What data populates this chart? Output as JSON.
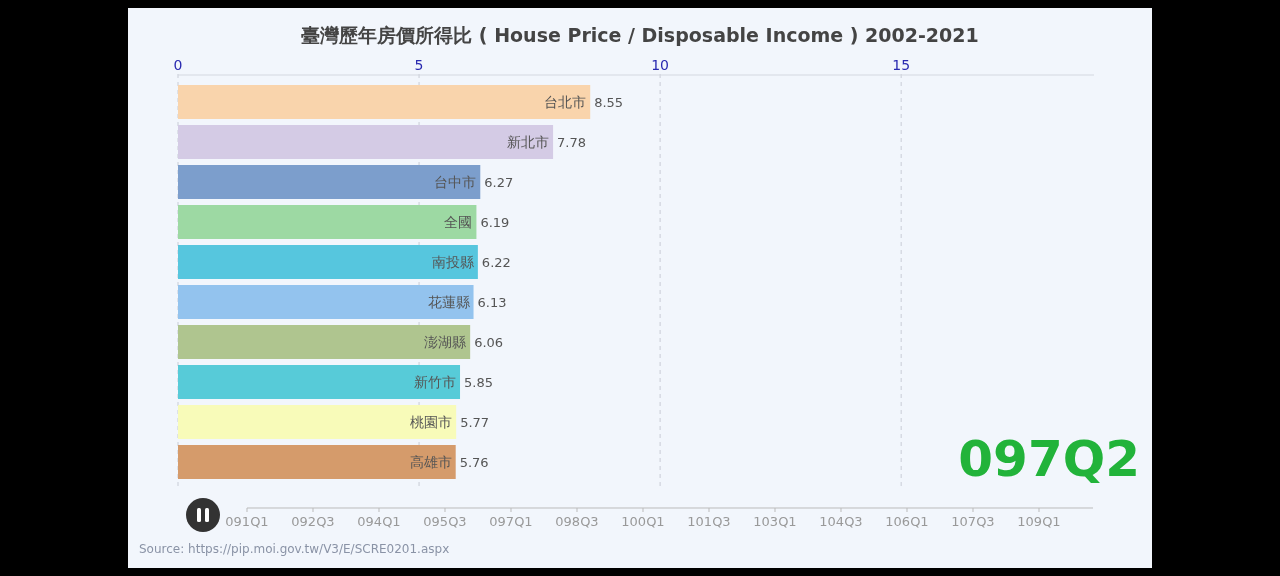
{
  "chart_data": {
    "type": "bar",
    "orientation": "horizontal",
    "title": "臺灣歷年房價所得比 ( House Price / Disposable Income ) 2002-2021",
    "categories": [
      "台北市",
      "新北市",
      "台中市",
      "全國",
      "南投縣",
      "花蓮縣",
      "澎湖縣",
      "新竹市",
      "桃園市",
      "高雄市"
    ],
    "values": [
      8.55,
      7.78,
      6.27,
      6.19,
      6.22,
      6.13,
      6.06,
      5.85,
      5.77,
      5.76
    ],
    "colors": [
      "#f9d4ac",
      "#d4cbe5",
      "#7c9ecc",
      "#9dd9a3",
      "#56c6de",
      "#93c3ee",
      "#afc58f",
      "#57cbd8",
      "#f8fbb9",
      "#d59b6b"
    ],
    "xlim": [
      0,
      19
    ],
    "xticks": [
      0,
      5,
      10,
      15
    ],
    "grid": "x",
    "data_labels": true,
    "annotations": [
      "097Q2",
      "Source: https://pip.moi.gov.tw/V3/E/SCRE0201.aspx",
      "091Q1",
      "092Q3",
      "094Q1",
      "095Q3",
      "097Q1",
      "098Q3",
      "100Q1",
      "101Q3",
      "103Q1",
      "104Q3",
      "106Q1",
      "107Q3",
      "109Q1"
    ]
  }
}
